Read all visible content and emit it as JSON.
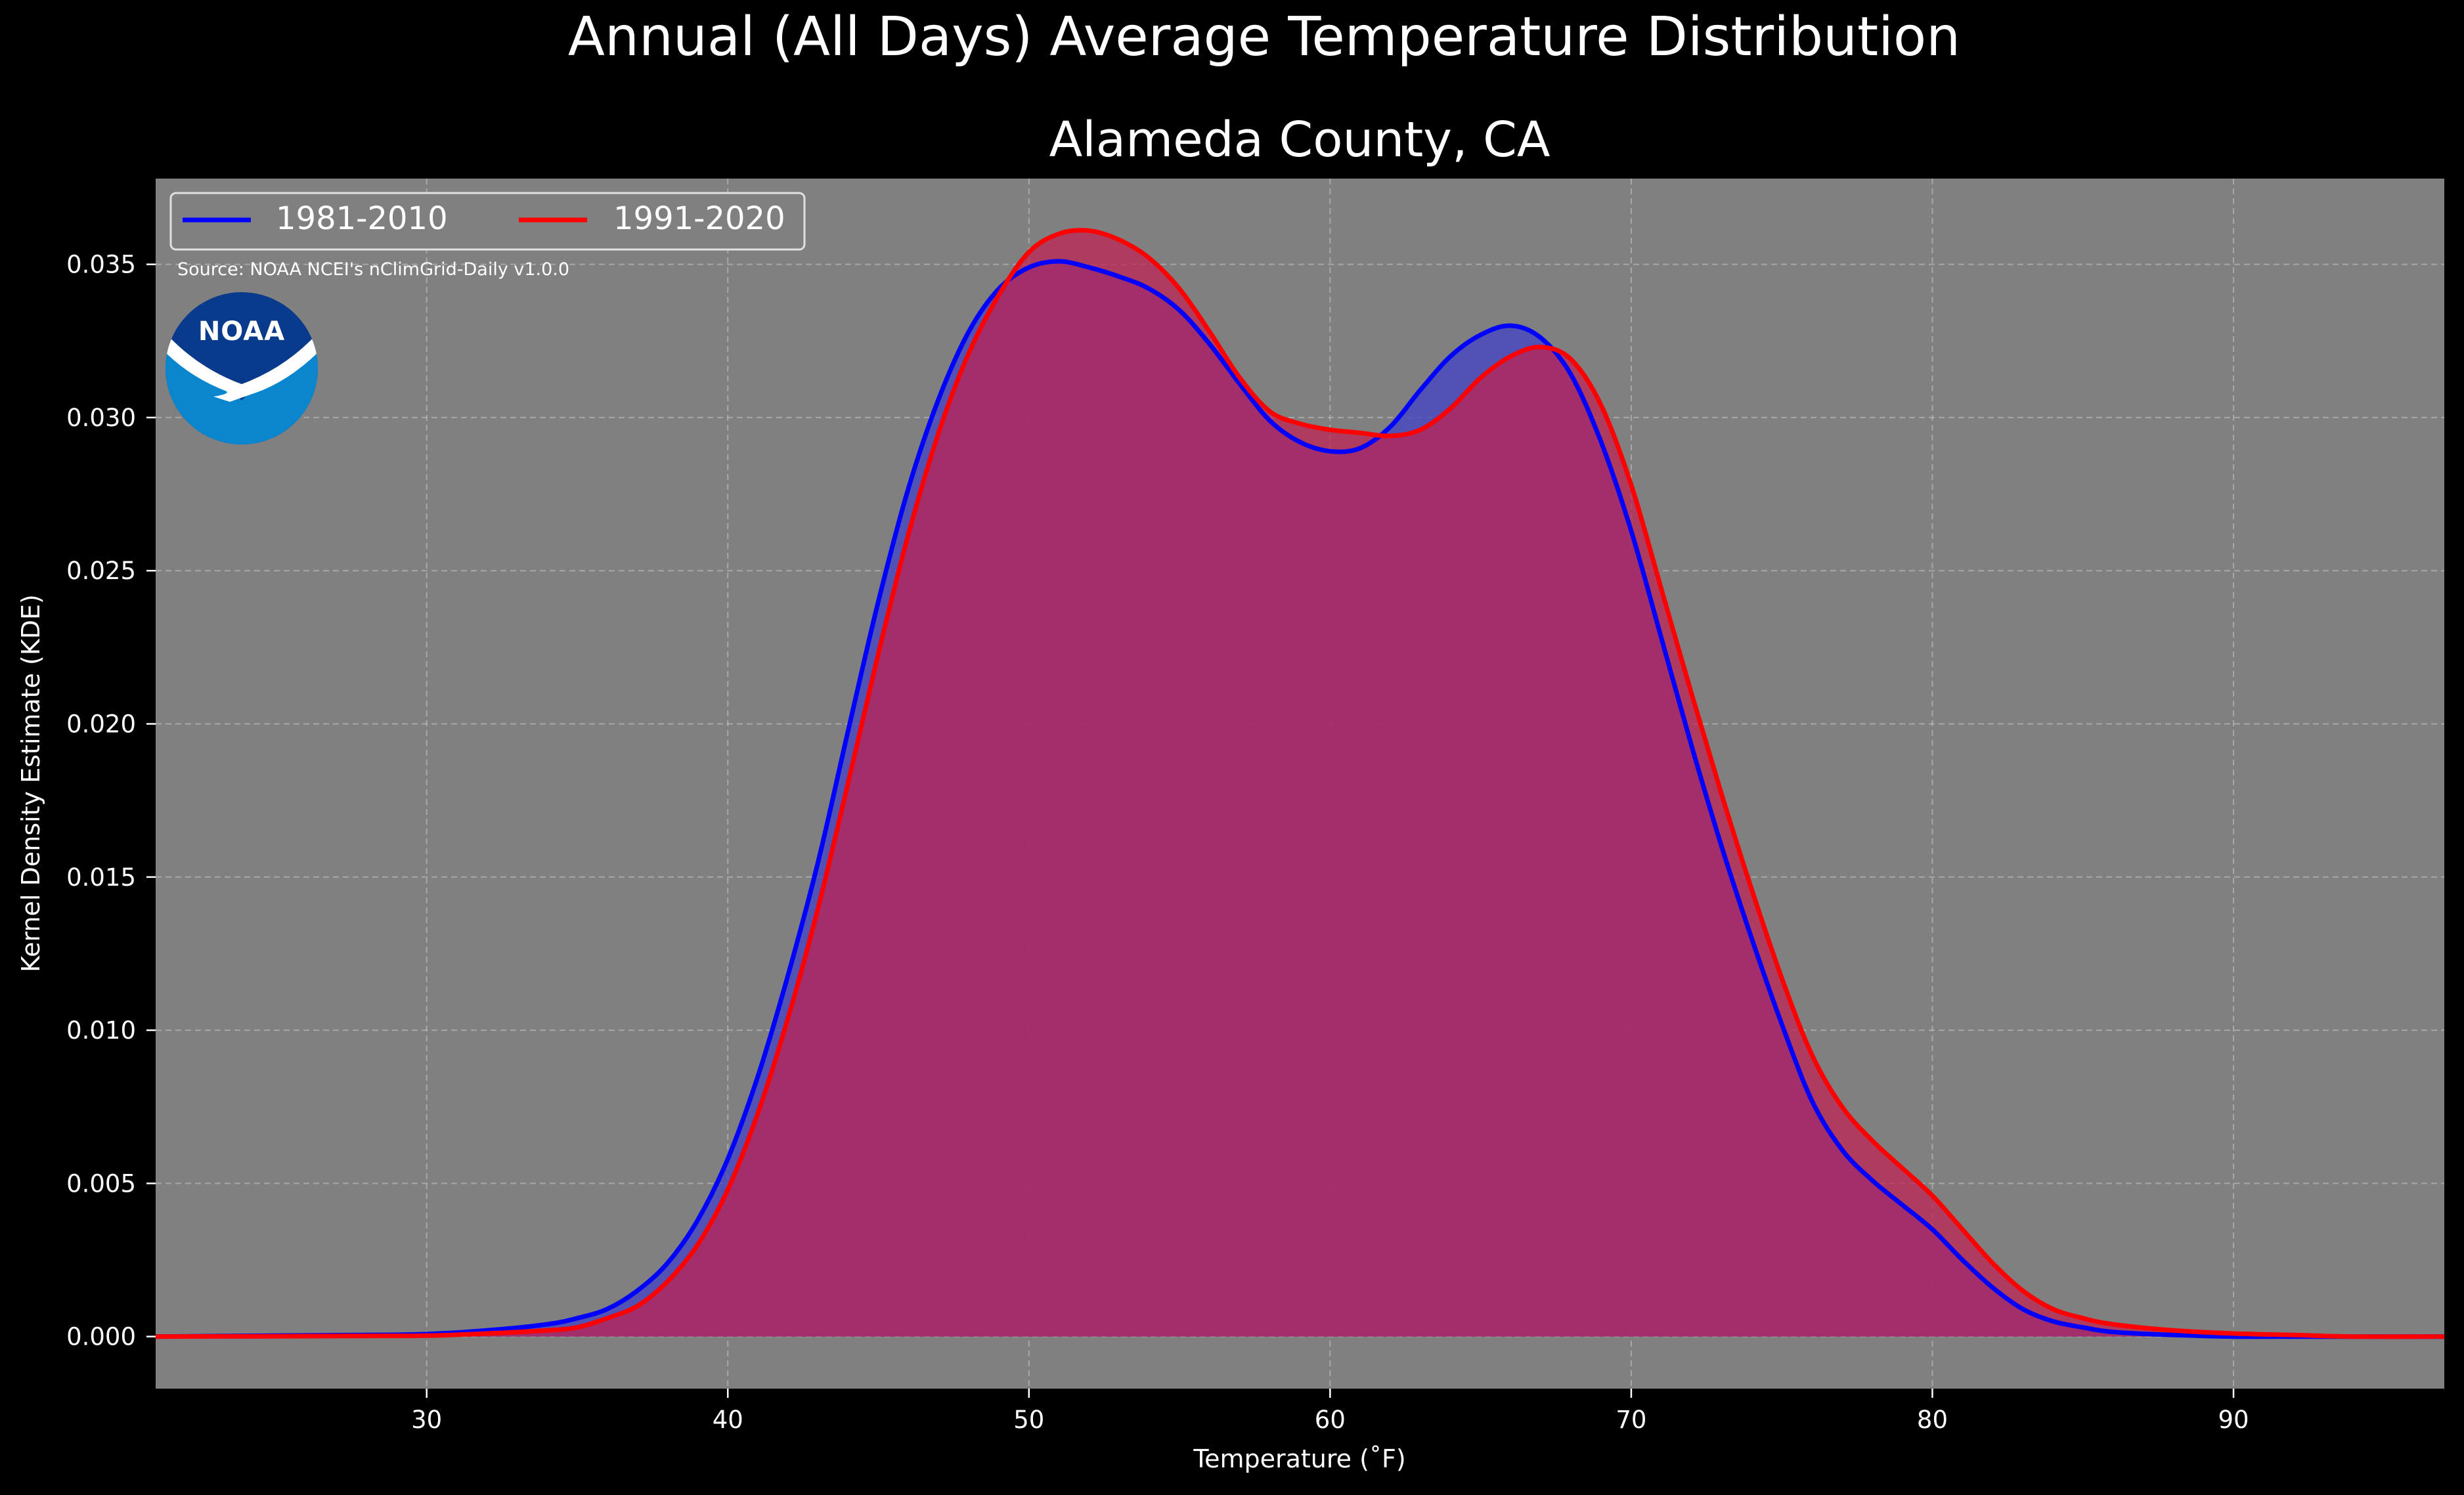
{
  "chart_data": {
    "type": "area",
    "title": "Annual (All Days) Average Temperature Distribution",
    "subtitle": "Alameda County, CA",
    "xlabel": "Temperature (˚F)",
    "ylabel": "Kernel Density Estimate (KDE)",
    "xlim": [
      21,
      97
    ],
    "ylim": [
      -0.0017,
      0.0378
    ],
    "xticks": [
      30,
      40,
      50,
      60,
      70,
      80,
      90
    ],
    "yticks": [
      0.0,
      0.005,
      0.01,
      0.015,
      0.02,
      0.025,
      0.03,
      0.035
    ],
    "ytick_labels": [
      "0.000",
      "0.005",
      "0.010",
      "0.015",
      "0.020",
      "0.025",
      "0.030",
      "0.035"
    ],
    "grid": true,
    "legend_position": "top-left",
    "background": "#808080",
    "source_note": "Source: NOAA NCEI's nClimGrid-Daily v1.0.0",
    "logo_text": "NOAA",
    "series": [
      {
        "name": "1981-2010",
        "color": "#0000ff",
        "fill": "#4040c8",
        "x": [
          21,
          25,
          28,
          30,
          32,
          34,
          35,
          36,
          37,
          38,
          39,
          40,
          41,
          42,
          43,
          44,
          45,
          46,
          47,
          48,
          49,
          50,
          51,
          52,
          53,
          54,
          55,
          56,
          57,
          58,
          59,
          60,
          61,
          62,
          63,
          64,
          65,
          66,
          67,
          68,
          69,
          70,
          71,
          72,
          73,
          74,
          75,
          76,
          77,
          78,
          79,
          80,
          81,
          82,
          83,
          84,
          85,
          86,
          88,
          90,
          92,
          94,
          97
        ],
        "y": [
          0.0,
          3e-05,
          5e-05,
          8e-05,
          0.0002,
          0.0004,
          0.0006,
          0.0009,
          0.0015,
          0.0024,
          0.0038,
          0.0058,
          0.0085,
          0.0118,
          0.0155,
          0.0198,
          0.024,
          0.0277,
          0.0306,
          0.0328,
          0.0342,
          0.0349,
          0.0351,
          0.0349,
          0.0346,
          0.0342,
          0.0335,
          0.0324,
          0.0311,
          0.0299,
          0.0292,
          0.0289,
          0.029,
          0.0297,
          0.0309,
          0.032,
          0.0327,
          0.033,
          0.0326,
          0.0314,
          0.0292,
          0.0263,
          0.0228,
          0.0193,
          0.016,
          0.013,
          0.0102,
          0.0077,
          0.0061,
          0.0051,
          0.0043,
          0.0035,
          0.0025,
          0.0016,
          0.0009,
          0.0005,
          0.0003,
          0.00015,
          5e-05,
          0.0,
          0.0,
          0.0,
          0.0
        ]
      },
      {
        "name": "1991-2020",
        "color": "#ff0000",
        "fill": "#c02050",
        "x": [
          21,
          25,
          28,
          30,
          32,
          34,
          35,
          36,
          37,
          38,
          39,
          40,
          41,
          42,
          43,
          44,
          45,
          46,
          47,
          48,
          49,
          50,
          51,
          52,
          53,
          54,
          55,
          56,
          57,
          58,
          59,
          60,
          61,
          62,
          63,
          64,
          65,
          66,
          67,
          68,
          69,
          70,
          71,
          72,
          73,
          74,
          75,
          76,
          77,
          78,
          79,
          80,
          81,
          82,
          83,
          84,
          85,
          86,
          88,
          90,
          92,
          94,
          97
        ],
        "y": [
          0.0,
          1e-05,
          2e-05,
          3e-05,
          0.0001,
          0.0002,
          0.0003,
          0.0006,
          0.001,
          0.0018,
          0.003,
          0.0048,
          0.0073,
          0.0104,
          0.014,
          0.0181,
          0.0223,
          0.0262,
          0.0295,
          0.0321,
          0.034,
          0.0354,
          0.036,
          0.0361,
          0.0358,
          0.0352,
          0.0342,
          0.0328,
          0.0313,
          0.0302,
          0.0298,
          0.0296,
          0.0295,
          0.0294,
          0.0296,
          0.0303,
          0.0313,
          0.032,
          0.0323,
          0.0319,
          0.0304,
          0.0278,
          0.0244,
          0.021,
          0.0177,
          0.0146,
          0.0117,
          0.0092,
          0.0075,
          0.0064,
          0.0055,
          0.0046,
          0.0035,
          0.0024,
          0.0015,
          0.0009,
          0.0006,
          0.0004,
          0.0002,
          0.0001,
          5e-05,
          0.0,
          0.0
        ]
      }
    ]
  }
}
